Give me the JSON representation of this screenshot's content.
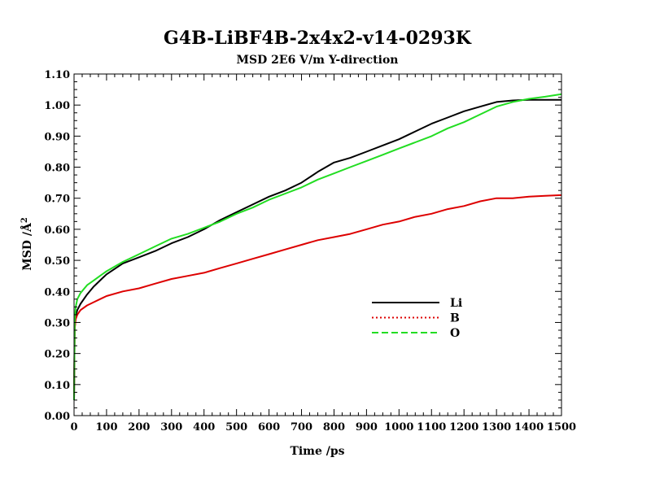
{
  "chart_data": {
    "type": "line",
    "title": "G4B-LiBF4B-2x4x2-v14-0293K",
    "subtitle": "MSD  2E6 V/m Y-direction",
    "xlabel": "Time /ps",
    "ylabel_prefix": "MSD /",
    "ylabel_unit": "Å",
    "ylabel_sup": "2",
    "xlim": [
      0,
      1500
    ],
    "ylim": [
      0,
      1.1
    ],
    "x_ticks": [
      "0",
      "100",
      "200",
      "300",
      "400",
      "500",
      "600",
      "700",
      "800",
      "900",
      "1000",
      "1100",
      "1200",
      "1300",
      "1400",
      "1500"
    ],
    "y_ticks": [
      "0.00",
      "0.10",
      "0.20",
      "0.30",
      "0.40",
      "0.50",
      "0.60",
      "0.70",
      "0.80",
      "0.90",
      "1.00",
      "1.10"
    ],
    "grid": false,
    "legend_position": "middle-right",
    "series": [
      {
        "name": "Li",
        "color": "#000000",
        "style": "solid",
        "x": [
          0,
          2,
          5,
          10,
          20,
          40,
          60,
          80,
          100,
          150,
          200,
          250,
          300,
          350,
          400,
          450,
          500,
          550,
          600,
          650,
          700,
          750,
          800,
          850,
          900,
          950,
          1000,
          1050,
          1100,
          1150,
          1200,
          1250,
          1300,
          1350,
          1400,
          1450,
          1500
        ],
        "y": [
          0.05,
          0.28,
          0.32,
          0.34,
          0.36,
          0.39,
          0.415,
          0.435,
          0.455,
          0.49,
          0.51,
          0.53,
          0.555,
          0.575,
          0.6,
          0.63,
          0.655,
          0.68,
          0.705,
          0.725,
          0.75,
          0.785,
          0.815,
          0.83,
          0.85,
          0.87,
          0.89,
          0.915,
          0.94,
          0.96,
          0.98,
          0.995,
          1.01,
          1.015,
          1.017,
          1.017,
          1.017
        ]
      },
      {
        "name": "B",
        "color": "#dd0000",
        "style": "dotted",
        "x": [
          0,
          2,
          5,
          10,
          20,
          40,
          60,
          80,
          100,
          150,
          200,
          250,
          300,
          350,
          400,
          450,
          500,
          550,
          600,
          650,
          700,
          750,
          800,
          850,
          900,
          950,
          1000,
          1050,
          1100,
          1150,
          1200,
          1250,
          1300,
          1350,
          1400,
          1450,
          1500
        ],
        "y": [
          0.05,
          0.28,
          0.31,
          0.325,
          0.34,
          0.355,
          0.365,
          0.375,
          0.385,
          0.4,
          0.41,
          0.425,
          0.44,
          0.45,
          0.46,
          0.475,
          0.49,
          0.505,
          0.52,
          0.535,
          0.55,
          0.565,
          0.575,
          0.585,
          0.6,
          0.615,
          0.625,
          0.64,
          0.65,
          0.665,
          0.675,
          0.69,
          0.7,
          0.7,
          0.705,
          0.708,
          0.71
        ]
      },
      {
        "name": "O",
        "color": "#22dd22",
        "style": "dashed",
        "x": [
          0,
          2,
          5,
          10,
          20,
          40,
          60,
          80,
          100,
          150,
          200,
          250,
          300,
          350,
          400,
          450,
          500,
          550,
          600,
          650,
          700,
          750,
          800,
          850,
          900,
          950,
          1000,
          1050,
          1100,
          1150,
          1200,
          1250,
          1300,
          1350,
          1400,
          1450,
          1500
        ],
        "y": [
          0.05,
          0.3,
          0.35,
          0.375,
          0.395,
          0.42,
          0.435,
          0.45,
          0.465,
          0.495,
          0.52,
          0.545,
          0.57,
          0.585,
          0.605,
          0.625,
          0.65,
          0.67,
          0.695,
          0.715,
          0.735,
          0.76,
          0.78,
          0.8,
          0.82,
          0.84,
          0.86,
          0.88,
          0.9,
          0.925,
          0.945,
          0.97,
          0.995,
          1.01,
          1.02,
          1.027,
          1.035
        ]
      }
    ]
  }
}
